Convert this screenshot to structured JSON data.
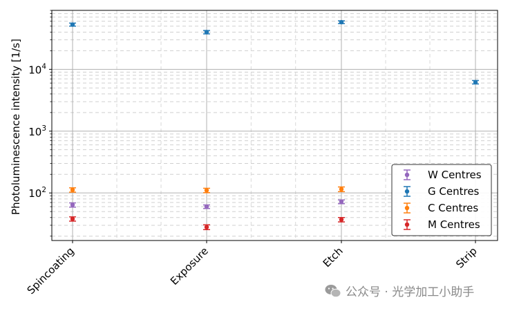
{
  "chart_data": {
    "type": "scatter",
    "ylabel": "Photoluminescence intensity [1/s]",
    "yscale": "log",
    "ylim": [
      17,
      90000
    ],
    "categories": [
      "Spincoating",
      "Exposure",
      "Etch",
      "Strip"
    ],
    "grid": true,
    "legend_position": "lower-right",
    "ytick_labels": [
      {
        "base": "10",
        "exp": "2",
        "value": 100
      },
      {
        "base": "10",
        "exp": "3",
        "value": 1000
      },
      {
        "base": "10",
        "exp": "4",
        "value": 10000
      }
    ],
    "series": [
      {
        "name": "W Centres",
        "color": "#9467bd",
        "values": [
          64,
          60,
          null,
          null
        ],
        "errors": [
          5,
          4,
          null,
          null
        ],
        "etch_value": 72,
        "etch_error": 5
      },
      {
        "name": "G Centres",
        "color": "#1f77b4",
        "values": [
          53000,
          40000,
          58000,
          6200
        ],
        "errors": [
          3000,
          2500,
          3000,
          400
        ]
      },
      {
        "name": "C Centres",
        "color": "#ff7f0e",
        "values": [
          112,
          110,
          115,
          null
        ],
        "errors": [
          9,
          9,
          10,
          null
        ]
      },
      {
        "name": "M Centres",
        "color": "#d62728",
        "values": [
          38,
          28,
          37,
          null
        ],
        "errors": [
          3,
          2.5,
          3,
          null
        ]
      }
    ]
  },
  "watermark": {
    "text": "公众号 · 光学加工小助手",
    "icon": "wechat-icon"
  }
}
